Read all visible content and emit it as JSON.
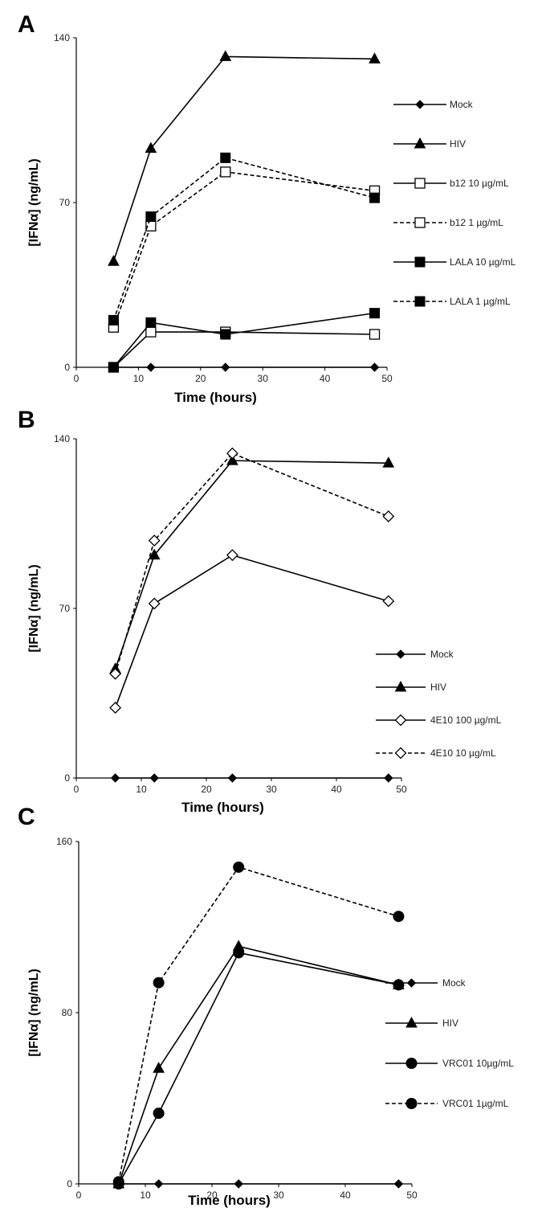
{
  "chart_data": [
    {
      "panel": "A",
      "type": "line",
      "xlabel": "Time (hours)",
      "ylabel": "[IFNα] (ng/mL)",
      "xlim": [
        0,
        50
      ],
      "ylim": [
        0,
        140
      ],
      "xticks": [
        0,
        10,
        20,
        30,
        40,
        50
      ],
      "yticks": [
        0,
        70,
        140
      ],
      "legend_position": "right",
      "x": [
        6,
        12,
        24,
        48
      ],
      "series": [
        {
          "name": "Mock",
          "values": [
            0,
            0,
            0,
            0
          ],
          "marker": "diamond-filled",
          "dash": "solid"
        },
        {
          "name": "HIV",
          "values": [
            45,
            93,
            132,
            131
          ],
          "marker": "triangle-filled",
          "dash": "solid"
        },
        {
          "name": "b12 10 µg/mL",
          "values": [
            0,
            15,
            15,
            14
          ],
          "marker": "square-open",
          "dash": "solid"
        },
        {
          "name": "b12 1 µg/mL",
          "values": [
            17,
            60,
            83,
            75
          ],
          "marker": "square-open",
          "dash": "dashed"
        },
        {
          "name": "LALA 10 µg/mL",
          "values": [
            0,
            19,
            14,
            23
          ],
          "marker": "square-filled",
          "dash": "solid"
        },
        {
          "name": "LALA 1 µg/mL",
          "values": [
            20,
            64,
            89,
            72
          ],
          "marker": "square-filled",
          "dash": "dashed"
        }
      ]
    },
    {
      "panel": "B",
      "type": "line",
      "xlabel": "Time (hours)",
      "ylabel": "[IFNα] (ng/mL)",
      "xlim": [
        0,
        50
      ],
      "ylim": [
        0,
        140
      ],
      "xticks": [
        0,
        10,
        20,
        30,
        40,
        50
      ],
      "yticks": [
        0,
        70,
        140
      ],
      "legend_position": "bottom-right",
      "x": [
        6,
        12,
        24,
        48
      ],
      "series": [
        {
          "name": "Mock",
          "values": [
            0,
            0,
            0,
            0
          ],
          "marker": "diamond-filled",
          "dash": "solid"
        },
        {
          "name": "HIV",
          "values": [
            45,
            92,
            131,
            130
          ],
          "marker": "triangle-filled",
          "dash": "solid"
        },
        {
          "name": "4E10 100 µg/mL",
          "values": [
            29,
            72,
            92,
            73
          ],
          "marker": "diamond-open",
          "dash": "solid"
        },
        {
          "name": "4E10 10 µg/mL",
          "values": [
            43,
            98,
            134,
            108
          ],
          "marker": "diamond-open",
          "dash": "dashed"
        }
      ]
    },
    {
      "panel": "C",
      "type": "line",
      "xlabel": "Time (hours)",
      "ylabel": "[IFNα] (ng/mL)",
      "xlim": [
        0,
        50
      ],
      "ylim": [
        0,
        160
      ],
      "xticks": [
        0,
        10,
        20,
        30,
        40,
        50
      ],
      "yticks": [
        0,
        80,
        160
      ],
      "legend_position": "bottom-right",
      "x": [
        6,
        12,
        24,
        48
      ],
      "series": [
        {
          "name": "Mock",
          "values": [
            0,
            0,
            0,
            0
          ],
          "marker": "diamond-filled",
          "dash": "solid"
        },
        {
          "name": "HIV",
          "values": [
            0,
            54,
            111,
            93
          ],
          "marker": "triangle-filled",
          "dash": "solid"
        },
        {
          "name": "VRC01 10µg/mL",
          "values": [
            0,
            33,
            108,
            93
          ],
          "marker": "circle-filled",
          "dash": "solid"
        },
        {
          "name": "VRC01 1µg/mL",
          "values": [
            1,
            94,
            148,
            125
          ],
          "marker": "circle-filled",
          "dash": "dashed"
        }
      ]
    }
  ]
}
